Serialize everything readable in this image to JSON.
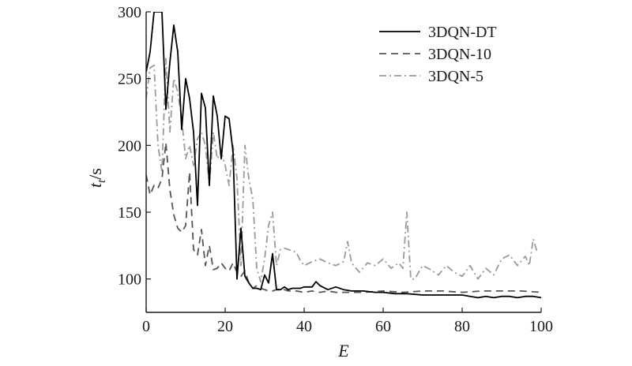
{
  "chart_data": {
    "type": "line",
    "xlabel": "E",
    "ylabel_main": "t",
    "ylabel_sub": "t",
    "ylabel_unit": "/s",
    "xlim": [
      0,
      100
    ],
    "ylim": [
      75,
      300
    ],
    "xticks": [
      0,
      20,
      40,
      60,
      80,
      100
    ],
    "yticks": [
      100,
      150,
      200,
      250,
      300
    ],
    "xtick_labels": [
      "0",
      "20",
      "40",
      "60",
      "80",
      "100"
    ],
    "ytick_labels": [
      "100",
      "150",
      "200",
      "250",
      "300"
    ],
    "grid": false,
    "legend_position": "top-right",
    "series": [
      {
        "name": "3DQN-DT",
        "color": "#000000",
        "dash": "solid",
        "x": [
          0,
          1,
          2,
          3,
          4,
          5,
          6,
          7,
          8,
          9,
          10,
          11,
          12,
          13,
          14,
          15,
          16,
          17,
          18,
          19,
          20,
          21,
          22,
          23,
          24,
          25,
          26,
          27,
          28,
          29,
          30,
          31,
          32,
          33,
          34,
          35,
          36,
          37,
          38,
          39,
          40,
          42,
          43,
          44,
          46,
          48,
          50,
          52,
          55,
          58,
          60,
          63,
          66,
          70,
          73,
          75,
          78,
          80,
          82,
          84,
          86,
          88,
          90,
          92,
          94,
          96,
          98,
          100
        ],
        "y": [
          255,
          270,
          300,
          300,
          300,
          227,
          262,
          290,
          270,
          212,
          250,
          235,
          210,
          155,
          239,
          228,
          170,
          237,
          222,
          190,
          222,
          220,
          195,
          100,
          138,
          102,
          97,
          93,
          93,
          92,
          103,
          97,
          119,
          92,
          92,
          94,
          92,
          93,
          93,
          93,
          94,
          94,
          98,
          95,
          92,
          94,
          92,
          91,
          91,
          90,
          90,
          89,
          89,
          88,
          88,
          88,
          88,
          88,
          87,
          86,
          87,
          86,
          87,
          87,
          86,
          87,
          87,
          86
        ]
      },
      {
        "name": "3DQN-10",
        "color": "#555555",
        "dash": "dashed",
        "x": [
          0,
          1,
          2,
          3,
          4,
          5,
          6,
          7,
          8,
          9,
          10,
          11,
          12,
          13,
          14,
          15,
          16,
          17,
          18,
          19,
          20,
          21,
          22,
          23,
          24,
          25,
          26,
          27,
          28,
          29,
          30,
          31,
          32,
          33,
          34,
          35,
          36,
          38,
          40,
          42,
          44,
          46,
          48,
          50,
          55,
          60,
          65,
          70,
          75,
          80,
          85,
          90,
          95,
          100
        ],
        "y": [
          178,
          163,
          170,
          168,
          175,
          202,
          167,
          148,
          138,
          135,
          140,
          180,
          122,
          118,
          137,
          110,
          125,
          107,
          108,
          112,
          108,
          106,
          112,
          105,
          102,
          106,
          97,
          93,
          95,
          93,
          92,
          91,
          91,
          92,
          92,
          92,
          91,
          91,
          90,
          91,
          90,
          91,
          90,
          90,
          90,
          91,
          90,
          91,
          91,
          90,
          91,
          91,
          91,
          90
        ]
      },
      {
        "name": "3DQN-5",
        "color": "#9a9a9a",
        "dash": "dashdot",
        "x": [
          0,
          1,
          2,
          3,
          4,
          5,
          6,
          7,
          8,
          9,
          10,
          11,
          12,
          13,
          14,
          15,
          16,
          17,
          18,
          19,
          20,
          21,
          22,
          23,
          24,
          25,
          26,
          27,
          28,
          29,
          30,
          31,
          32,
          33,
          34,
          35,
          36,
          37,
          38,
          39,
          40,
          42,
          44,
          46,
          48,
          50,
          51,
          52,
          54,
          56,
          58,
          60,
          62,
          64,
          65,
          66,
          67,
          68,
          70,
          72,
          74,
          76,
          78,
          80,
          82,
          84,
          86,
          88,
          90,
          92,
          94,
          96,
          97,
          98,
          99
        ],
        "y": [
          235,
          258,
          260,
          200,
          180,
          265,
          210,
          250,
          240,
          220,
          190,
          200,
          185,
          205,
          210,
          200,
          170,
          210,
          190,
          195,
          185,
          170,
          200,
          175,
          110,
          200,
          175,
          160,
          108,
          98,
          115,
          140,
          150,
          110,
          122,
          123,
          122,
          121,
          120,
          114,
          110,
          113,
          115,
          112,
          110,
          113,
          128,
          112,
          105,
          112,
          110,
          115,
          108,
          112,
          108,
          150,
          100,
          100,
          110,
          107,
          103,
          110,
          105,
          102,
          110,
          100,
          108,
          103,
          115,
          118,
          110,
          117,
          110,
          130,
          120
        ]
      }
    ]
  }
}
